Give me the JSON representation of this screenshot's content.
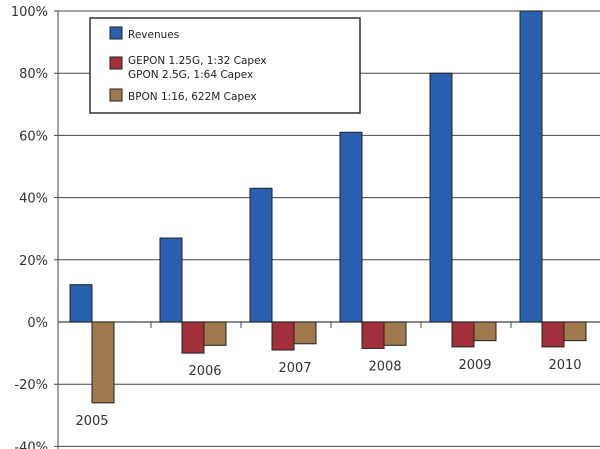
{
  "chart_data": {
    "type": "bar",
    "title": "",
    "xlabel": "",
    "ylabel": "",
    "ylim": [
      -40,
      100
    ],
    "yticks": [
      "100%",
      "80%",
      "60%",
      "40%",
      "20%",
      "0%",
      "-20%",
      "-40%"
    ],
    "ytick_values": [
      100,
      80,
      60,
      40,
      20,
      0,
      -20,
      -40
    ],
    "categories": [
      "2005",
      "2006",
      "2007",
      "2008",
      "2009",
      "2010"
    ],
    "grid": true,
    "legend_position": "top-left",
    "series": [
      {
        "name": "Revenues",
        "color": "#2a5fb0",
        "values": [
          12,
          27,
          43,
          61,
          80,
          100
        ]
      },
      {
        "name": "GEPON 1.25G, 1:32 Capex",
        "name_line2": "GPON 2.5G, 1:64 Capex",
        "color": "#a2303a",
        "values": [
          null,
          -10,
          -9,
          -8.5,
          -8,
          -8
        ]
      },
      {
        "name": "BPON 1:16, 622M Capex",
        "color": "#a07a4e",
        "values": [
          -26,
          -7.5,
          -7,
          -7.5,
          -6,
          -6
        ]
      }
    ]
  }
}
